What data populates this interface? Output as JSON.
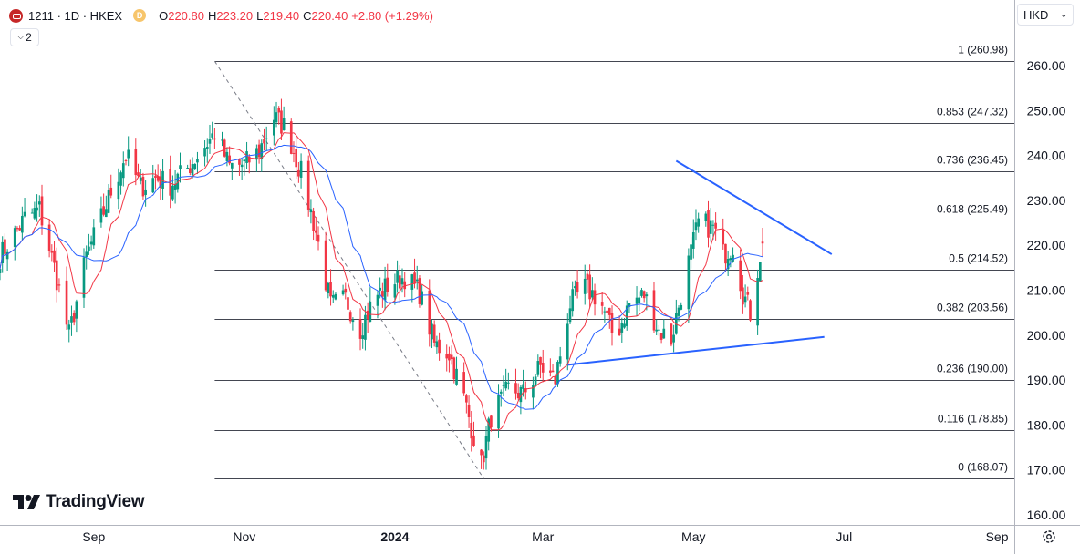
{
  "header": {
    "symbol": "1211 · 1D · HKEX",
    "badge": "D",
    "open_label": "O",
    "open": "220.80",
    "high_label": "H",
    "high": "223.20",
    "low_label": "L",
    "low": "219.40",
    "close_label": "C",
    "close": "220.40",
    "change": "+2.80 (+1.29%)",
    "indicators_collapsed": "2"
  },
  "currency": "HKD",
  "branding": "TradingView",
  "colors": {
    "up": "#089981",
    "down": "#f23645",
    "ma_fast": "#f23645",
    "ma_slow": "#2962ff",
    "trendline": "#2962ff",
    "fib_line": "#434651"
  },
  "chart_data": {
    "type": "candlestick",
    "ylim": [
      158,
      266
    ],
    "y_ticks": [
      "260.00",
      "250.00",
      "240.00",
      "230.00",
      "220.00",
      "210.00",
      "200.00",
      "190.00",
      "180.00",
      "170.00",
      "160.00"
    ],
    "x_tick_labels": [
      "Sep",
      "Nov",
      "2024",
      "Mar",
      "May",
      "Jul",
      "Sep"
    ],
    "x_tick_dates": [
      "2023-09-01",
      "2023-11-01",
      "2024-01-01",
      "2024-03-01",
      "2024-05-01",
      "2024-07-01",
      "2024-09-01"
    ],
    "x_range": [
      "2023-07-25",
      "2024-09-08"
    ],
    "fibonacci": {
      "from": "2023-10-20",
      "to": "2024-02-06",
      "levels": [
        {
          "ratio": "1",
          "price": "260.98",
          "value": 260.98
        },
        {
          "ratio": "0.853",
          "price": "247.32",
          "value": 247.32
        },
        {
          "ratio": "0.736",
          "price": "236.45",
          "value": 236.45
        },
        {
          "ratio": "0.618",
          "price": "225.49",
          "value": 225.49
        },
        {
          "ratio": "0.5",
          "price": "214.52",
          "value": 214.52
        },
        {
          "ratio": "0.382",
          "price": "203.56",
          "value": 203.56
        },
        {
          "ratio": "0.236",
          "price": "190.00",
          "value": 190.0
        },
        {
          "ratio": "0.116",
          "price": "178.85",
          "value": 178.85
        },
        {
          "ratio": "0",
          "price": "168.07",
          "value": 168.07
        }
      ]
    },
    "trendlines": [
      {
        "x1": "2024-04-24",
        "y1": 238.8,
        "x2": "2024-06-26",
        "y2": 218.0
      },
      {
        "x1": "2024-03-11",
        "y1": 193.4,
        "x2": "2024-06-23",
        "y2": 199.6
      }
    ],
    "close_anchors": [
      [
        "2023-07-25",
        217.5
      ],
      [
        "2023-08-04",
        226
      ],
      [
        "2023-08-10",
        228.0
      ],
      [
        "2023-08-16",
        215
      ],
      [
        "2023-08-22",
        200
      ],
      [
        "2023-08-29",
        217.5
      ],
      [
        "2023-09-04",
        226
      ],
      [
        "2023-09-08",
        232
      ],
      [
        "2023-09-14",
        240.0
      ],
      [
        "2023-09-20",
        233
      ],
      [
        "2023-09-26",
        235
      ],
      [
        "2023-10-02",
        233.5
      ],
      [
        "2023-10-08",
        236.5
      ],
      [
        "2023-10-13",
        240.0
      ],
      [
        "2023-10-20",
        245
      ],
      [
        "2023-10-26",
        237.5
      ],
      [
        "2023-11-01",
        238
      ],
      [
        "2023-11-07",
        241
      ],
      [
        "2023-11-13",
        248.5
      ],
      [
        "2023-11-18",
        246
      ],
      [
        "2023-11-24",
        236
      ],
      [
        "2023-11-30",
        223
      ],
      [
        "2023-12-06",
        206.5
      ],
      [
        "2023-12-12",
        208
      ],
      [
        "2023-12-18",
        201.5
      ],
      [
        "2023-12-24",
        208.5
      ],
      [
        "2023-12-30",
        211.5
      ],
      [
        "2024-01-05",
        213
      ],
      [
        "2024-01-11",
        209.5
      ],
      [
        "2024-01-17",
        198.0
      ],
      [
        "2024-01-23",
        196
      ],
      [
        "2024-01-29",
        186
      ],
      [
        "2024-02-05",
        171
      ],
      [
        "2024-02-09",
        182.0
      ],
      [
        "2024-02-16",
        188
      ],
      [
        "2024-02-22",
        187.0
      ],
      [
        "2024-02-29",
        193
      ],
      [
        "2024-03-06",
        190.0
      ],
      [
        "2024-03-12",
        207
      ],
      [
        "2024-03-18",
        210.5
      ],
      [
        "2024-03-24",
        208
      ],
      [
        "2024-03-30",
        199
      ],
      [
        "2024-04-05",
        207
      ],
      [
        "2024-04-11",
        209
      ],
      [
        "2024-04-17",
        201
      ],
      [
        "2024-04-22",
        199
      ],
      [
        "2024-04-28",
        214
      ],
      [
        "2024-05-03",
        225.0
      ],
      [
        "2024-05-09",
        224
      ],
      [
        "2024-05-13",
        218.0
      ],
      [
        "2024-05-17",
        220.0
      ],
      [
        "2024-05-21",
        209.5
      ],
      [
        "2024-05-24",
        205.0
      ],
      [
        "2024-05-28",
        218.0
      ],
      [
        "2024-05-29",
        220.4
      ]
    ],
    "series": [
      {
        "kind": "candles"
      },
      {
        "kind": "ma_fast"
      },
      {
        "kind": "ma_slow"
      }
    ]
  }
}
